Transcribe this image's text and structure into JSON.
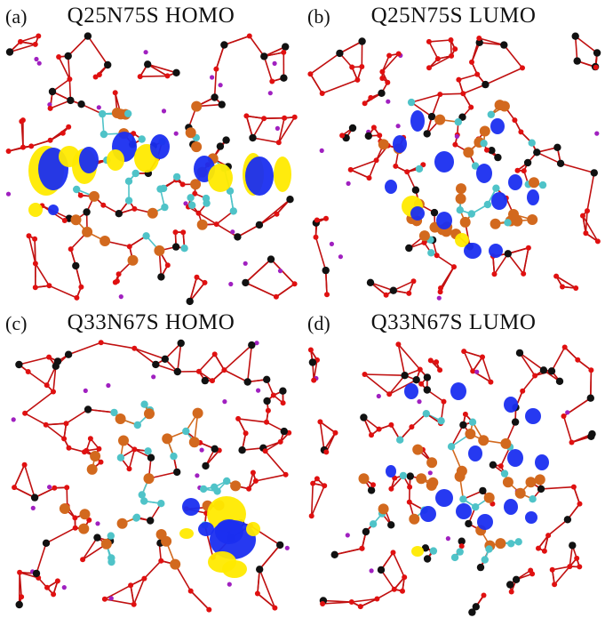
{
  "panels": [
    {
      "label": "(a)",
      "title": "Q25N75S HOMO"
    },
    {
      "label": "(b)",
      "title": "Q25N75S LUMO"
    },
    {
      "label": "(c)",
      "title": "Q33N67S HOMO"
    },
    {
      "label": "(d)",
      "title": "Q33N67S LUMO"
    }
  ],
  "colors": {
    "oxygen": "#e01010",
    "carbon_black": "#111111",
    "sulfur_orange": "#d2691e",
    "silicon_cyan": "#4fc3c8",
    "sodium_purple": "#a020c0",
    "orbital_blue": "#1a2ef0",
    "orbital_yellow": "#ffea00",
    "bond": "#c01010"
  }
}
